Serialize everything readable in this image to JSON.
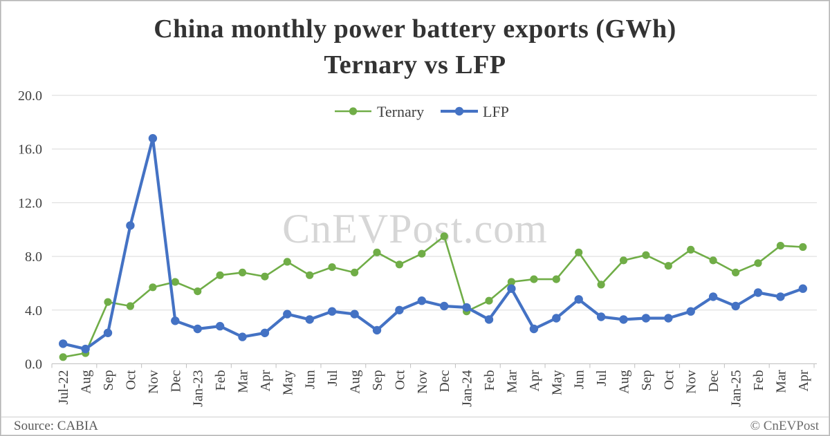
{
  "title": {
    "line1": "China monthly power battery exports (GWh)",
    "line2": "Ternary vs LFP"
  },
  "watermark": "CnEVPost.com",
  "footer": {
    "source": "Source: CABIA",
    "credit": "© CnEVPost"
  },
  "colors": {
    "ternary": "#70ad47",
    "lfp": "#4472c4",
    "gridline": "#d9d9d9",
    "axis_line": "#bfbfbf",
    "axis_text": "#404040",
    "watermark": "#d6d6d6"
  },
  "chart_data": {
    "type": "line",
    "title": "China monthly power battery exports (GWh) Ternary vs LFP",
    "xlabel": "",
    "ylabel": "",
    "ylim": [
      0,
      20
    ],
    "ytick_values": [
      0,
      4,
      8,
      12,
      16,
      20
    ],
    "ytick_labels": [
      "0.0",
      "4.0",
      "8.0",
      "12.0",
      "16.0",
      "20.0"
    ],
    "grid": true,
    "legend_position": "top-center",
    "x_tick_mark_interval": 2,
    "categories": [
      "Jul-22",
      "Aug",
      "Sep",
      "Oct",
      "Nov",
      "Dec",
      "Jan-23",
      "Feb",
      "Mar",
      "Apr",
      "May",
      "Jun",
      "Jul",
      "Aug",
      "Sep",
      "Oct",
      "Nov",
      "Dec",
      "Jan-24",
      "Feb",
      "Mar",
      "Apr",
      "May",
      "Jun",
      "Jul",
      "Aug",
      "Sep",
      "Oct",
      "Nov",
      "Dec",
      "Jan-25",
      "Feb",
      "Mar",
      "Apr"
    ],
    "series": [
      {
        "name": "Ternary",
        "color": "#70ad47",
        "line_width": 2.6,
        "marker_radius": 5.6,
        "values": [
          0.5,
          0.8,
          4.6,
          4.3,
          5.7,
          6.1,
          5.4,
          6.6,
          6.8,
          6.5,
          7.6,
          6.6,
          7.2,
          6.8,
          8.3,
          7.4,
          8.2,
          9.5,
          3.9,
          4.7,
          6.1,
          6.3,
          6.3,
          8.3,
          5.9,
          7.7,
          8.1,
          7.3,
          8.5,
          7.7,
          6.8,
          7.5,
          8.8,
          8.7
        ]
      },
      {
        "name": "LFP",
        "color": "#4472c4",
        "line_width": 4.2,
        "marker_radius": 6.2,
        "values": [
          1.5,
          1.1,
          2.3,
          10.3,
          16.8,
          3.2,
          2.6,
          2.8,
          2.0,
          2.3,
          3.7,
          3.3,
          3.9,
          3.7,
          2.5,
          4.0,
          4.7,
          4.3,
          4.2,
          3.3,
          5.6,
          2.6,
          3.4,
          4.8,
          3.5,
          3.3,
          3.4,
          3.4,
          3.9,
          5.0,
          4.3,
          5.3,
          5.0,
          5.6
        ]
      }
    ]
  }
}
